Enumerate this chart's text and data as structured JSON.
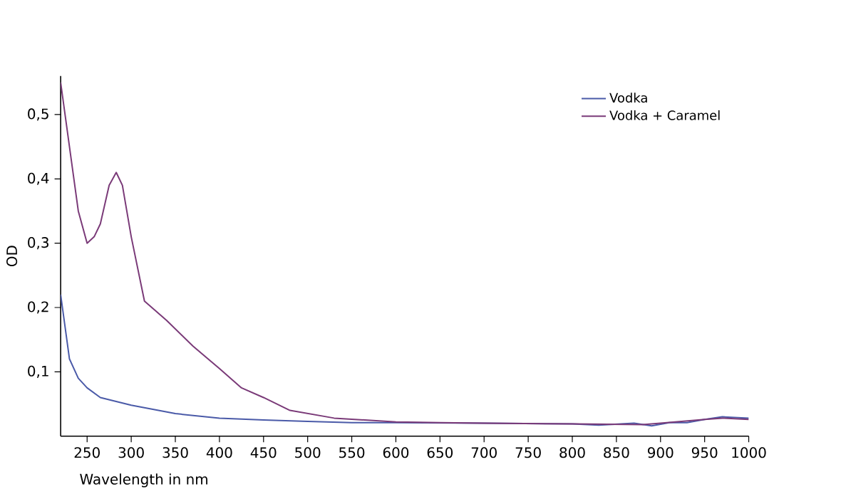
{
  "chart_data": {
    "type": "line",
    "xlabel": "Wavelength in nm",
    "ylabel": "OD",
    "xlim": [
      220,
      1000
    ],
    "ylim": [
      0,
      0.56
    ],
    "xticks": [
      250,
      300,
      350,
      400,
      450,
      500,
      550,
      600,
      650,
      700,
      750,
      800,
      850,
      900,
      950,
      1000
    ],
    "yticks": [
      {
        "value": 0.1,
        "label": "0,1"
      },
      {
        "value": 0.2,
        "label": "0,2"
      },
      {
        "value": 0.3,
        "label": "0,3"
      },
      {
        "value": 0.4,
        "label": "0,4"
      },
      {
        "value": 0.5,
        "label": "0,5"
      }
    ],
    "legend": "top right",
    "grid": false,
    "series": [
      {
        "name": "Vodka",
        "color": "#4a5aa8",
        "x": [
          220,
          225,
          230,
          240,
          250,
          265,
          300,
          350,
          400,
          450,
          500,
          550,
          600,
          700,
          800,
          830,
          870,
          890,
          910,
          930,
          950,
          970,
          1000
        ],
        "values": [
          0.22,
          0.17,
          0.12,
          0.09,
          0.075,
          0.06,
          0.048,
          0.035,
          0.028,
          0.025,
          0.023,
          0.021,
          0.021,
          0.02,
          0.019,
          0.017,
          0.02,
          0.016,
          0.021,
          0.021,
          0.026,
          0.03,
          0.028
        ]
      },
      {
        "name": "Vodka + Caramel",
        "color": "#7a3a78",
        "x": [
          220,
          230,
          240,
          250,
          258,
          265,
          275,
          283,
          290,
          300,
          315,
          340,
          370,
          400,
          425,
          450,
          480,
          530,
          600,
          650,
          700,
          800,
          880,
          900,
          950,
          970,
          1000
        ],
        "values": [
          0.55,
          0.45,
          0.35,
          0.3,
          0.31,
          0.33,
          0.39,
          0.41,
          0.39,
          0.31,
          0.21,
          0.18,
          0.14,
          0.105,
          0.075,
          0.06,
          0.04,
          0.028,
          0.022,
          0.021,
          0.02,
          0.019,
          0.018,
          0.02,
          0.026,
          0.028,
          0.026
        ]
      }
    ]
  }
}
